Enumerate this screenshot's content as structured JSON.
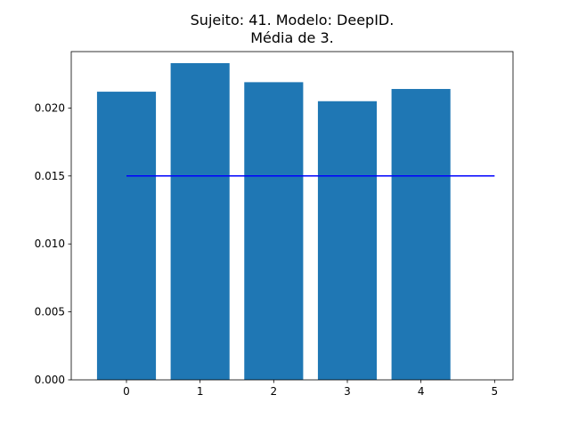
{
  "chart_data": {
    "type": "bar",
    "title_line1": "Sujeito: 41. Modelo: DeepID.",
    "title_line2": "Média de 3.",
    "xlabel": "",
    "ylabel": "",
    "categories": [
      0,
      1,
      2,
      3,
      4
    ],
    "values": [
      0.0212,
      0.0233,
      0.0219,
      0.0205,
      0.0214
    ],
    "bar_color": "#1f77b4",
    "reference_line": {
      "x": [
        0,
        5
      ],
      "y": 0.015,
      "color": "#0000ff"
    },
    "xlim": [
      -0.75,
      5.25
    ],
    "ylim": [
      0,
      0.02415
    ],
    "xticks": [
      "0",
      "1",
      "2",
      "3",
      "4",
      "5"
    ],
    "yticks": [
      "0.000",
      "0.005",
      "0.010",
      "0.015",
      "0.020"
    ],
    "grid": false,
    "legend": "none"
  }
}
